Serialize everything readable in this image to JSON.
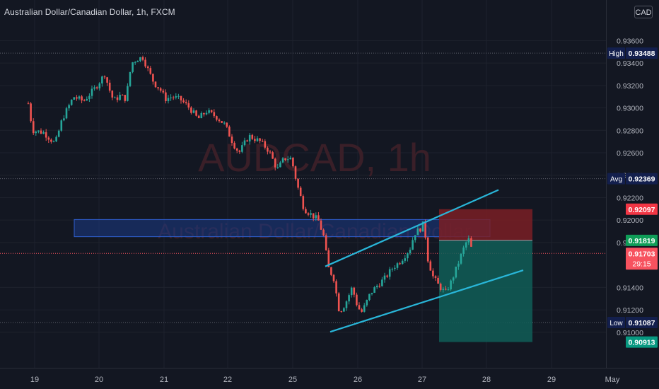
{
  "header": {
    "title": "Australian Dollar/Canadian Dollar, 1h, FXCM",
    "currency": "CAD"
  },
  "watermark": {
    "symbol": "AUDCAD, 1h",
    "name": "Australian Dollar/Canadian Dollar"
  },
  "colors": {
    "background": "#131722",
    "up": "#26a69a",
    "down": "#ef5350",
    "channel": "#29b6d9",
    "stop_zone": "#7a1e25",
    "target_zone": "#115e57",
    "entry_label": "#0f9d58",
    "target_label": "#089981",
    "stop_label": "#f23645",
    "current_label": "#f7525f",
    "stat_label": "#131f4d"
  },
  "chart_data": {
    "type": "candlestick",
    "symbol": "AUDCAD",
    "interval": "1h",
    "source": "FXCM",
    "y_axis": {
      "range": [
        0.9086,
        0.9376
      ],
      "ticks": [
        "0.93600",
        "0.93400",
        "0.93200",
        "0.93000",
        "0.92800",
        "0.92600",
        "0.92400",
        "0.92200",
        "0.92000",
        "0.91800",
        "0.91400",
        "0.91200",
        "0.91000"
      ]
    },
    "x_axis": {
      "ticks": [
        "19",
        "20",
        "21",
        "22",
        "25",
        "26",
        "27",
        "28",
        "29",
        "May"
      ]
    },
    "series": {
      "name": "AUDCAD",
      "checkpoints": [
        {
          "t": 0,
          "close": 0.9304
        },
        {
          "t": 6,
          "close": 0.928
        },
        {
          "t": 22,
          "close": 0.9278
        },
        {
          "t": 38,
          "close": 0.9268
        },
        {
          "t": 48,
          "close": 0.929
        },
        {
          "t": 64,
          "close": 0.931
        },
        {
          "t": 78,
          "close": 0.9306
        },
        {
          "t": 95,
          "close": 0.9318
        },
        {
          "t": 108,
          "close": 0.933
        },
        {
          "t": 118,
          "close": 0.931
        },
        {
          "t": 122,
          "close": 0.9307
        },
        {
          "t": 130,
          "close": 0.9311
        },
        {
          "t": 138,
          "close": 0.9308
        },
        {
          "t": 146,
          "close": 0.934
        },
        {
          "t": 155,
          "close": 0.9344
        },
        {
          "t": 162,
          "close": 0.9345
        },
        {
          "t": 170,
          "close": 0.9333
        },
        {
          "t": 178,
          "close": 0.9322
        },
        {
          "t": 186,
          "close": 0.9317
        },
        {
          "t": 194,
          "close": 0.9308
        },
        {
          "t": 204,
          "close": 0.931
        },
        {
          "t": 216,
          "close": 0.9307
        },
        {
          "t": 228,
          "close": 0.93
        },
        {
          "t": 240,
          "close": 0.929
        },
        {
          "t": 252,
          "close": 0.9297
        },
        {
          "t": 266,
          "close": 0.9292
        },
        {
          "t": 278,
          "close": 0.9285
        },
        {
          "t": 290,
          "close": 0.9268
        },
        {
          "t": 298,
          "close": 0.926
        },
        {
          "t": 312,
          "close": 0.9275
        },
        {
          "t": 328,
          "close": 0.927
        },
        {
          "t": 340,
          "close": 0.9262
        },
        {
          "t": 352,
          "close": 0.9245
        },
        {
          "t": 362,
          "close": 0.9255
        },
        {
          "t": 372,
          "close": 0.9255
        },
        {
          "t": 380,
          "close": 0.9232
        },
        {
          "t": 390,
          "close": 0.921
        },
        {
          "t": 400,
          "close": 0.9205
        },
        {
          "t": 410,
          "close": 0.92
        },
        {
          "t": 418,
          "close": 0.9185
        },
        {
          "t": 424,
          "close": 0.9158
        },
        {
          "t": 432,
          "close": 0.9148
        },
        {
          "t": 440,
          "close": 0.9118
        },
        {
          "t": 448,
          "close": 0.9125
        },
        {
          "t": 458,
          "close": 0.914
        },
        {
          "t": 466,
          "close": 0.9122
        },
        {
          "t": 472,
          "close": 0.9118
        },
        {
          "t": 484,
          "close": 0.9135
        },
        {
          "t": 494,
          "close": 0.9142
        },
        {
          "t": 504,
          "close": 0.9148
        },
        {
          "t": 516,
          "close": 0.9158
        },
        {
          "t": 524,
          "close": 0.9162
        },
        {
          "t": 532,
          "close": 0.9168
        },
        {
          "t": 540,
          "close": 0.9175
        },
        {
          "t": 546,
          "close": 0.9188
        },
        {
          "t": 554,
          "close": 0.9192
        },
        {
          "t": 560,
          "close": 0.9198
        },
        {
          "t": 564,
          "close": 0.9168
        },
        {
          "t": 572,
          "close": 0.915
        },
        {
          "t": 580,
          "close": 0.9142
        },
        {
          "t": 590,
          "close": 0.9135
        },
        {
          "t": 598,
          "close": 0.9145
        },
        {
          "t": 606,
          "close": 0.9158
        },
        {
          "t": 614,
          "close": 0.9172
        },
        {
          "t": 622,
          "close": 0.9184
        },
        {
          "t": 628,
          "close": 0.9172
        }
      ]
    },
    "levels": [
      {
        "name": "High",
        "value": 0.93488,
        "label": "0.93488"
      },
      {
        "name": "Avg",
        "value": 0.92369,
        "label": "0.92369"
      },
      {
        "name": "Low",
        "value": 0.91087,
        "label": "0.91087"
      },
      {
        "name": "",
        "value": 0.91703,
        "label": "0.91703",
        "countdown": "29:15"
      }
    ],
    "position": {
      "stop": 0.92097,
      "stop_label": "0.92097",
      "entry": 0.91819,
      "entry_label": "0.91819",
      "target": 0.90913,
      "target_label": "0.90913"
    },
    "zone": {
      "top": 0.92005,
      "bottom": 0.91852
    },
    "channel": {
      "upper": [
        {
          "t": 420,
          "price": 0.91587
        },
        {
          "t": 665,
          "price": 0.92269
        }
      ],
      "lower": [
        {
          "t": 427,
          "price": 0.91004
        },
        {
          "t": 700,
          "price": 0.91553
        }
      ]
    }
  }
}
